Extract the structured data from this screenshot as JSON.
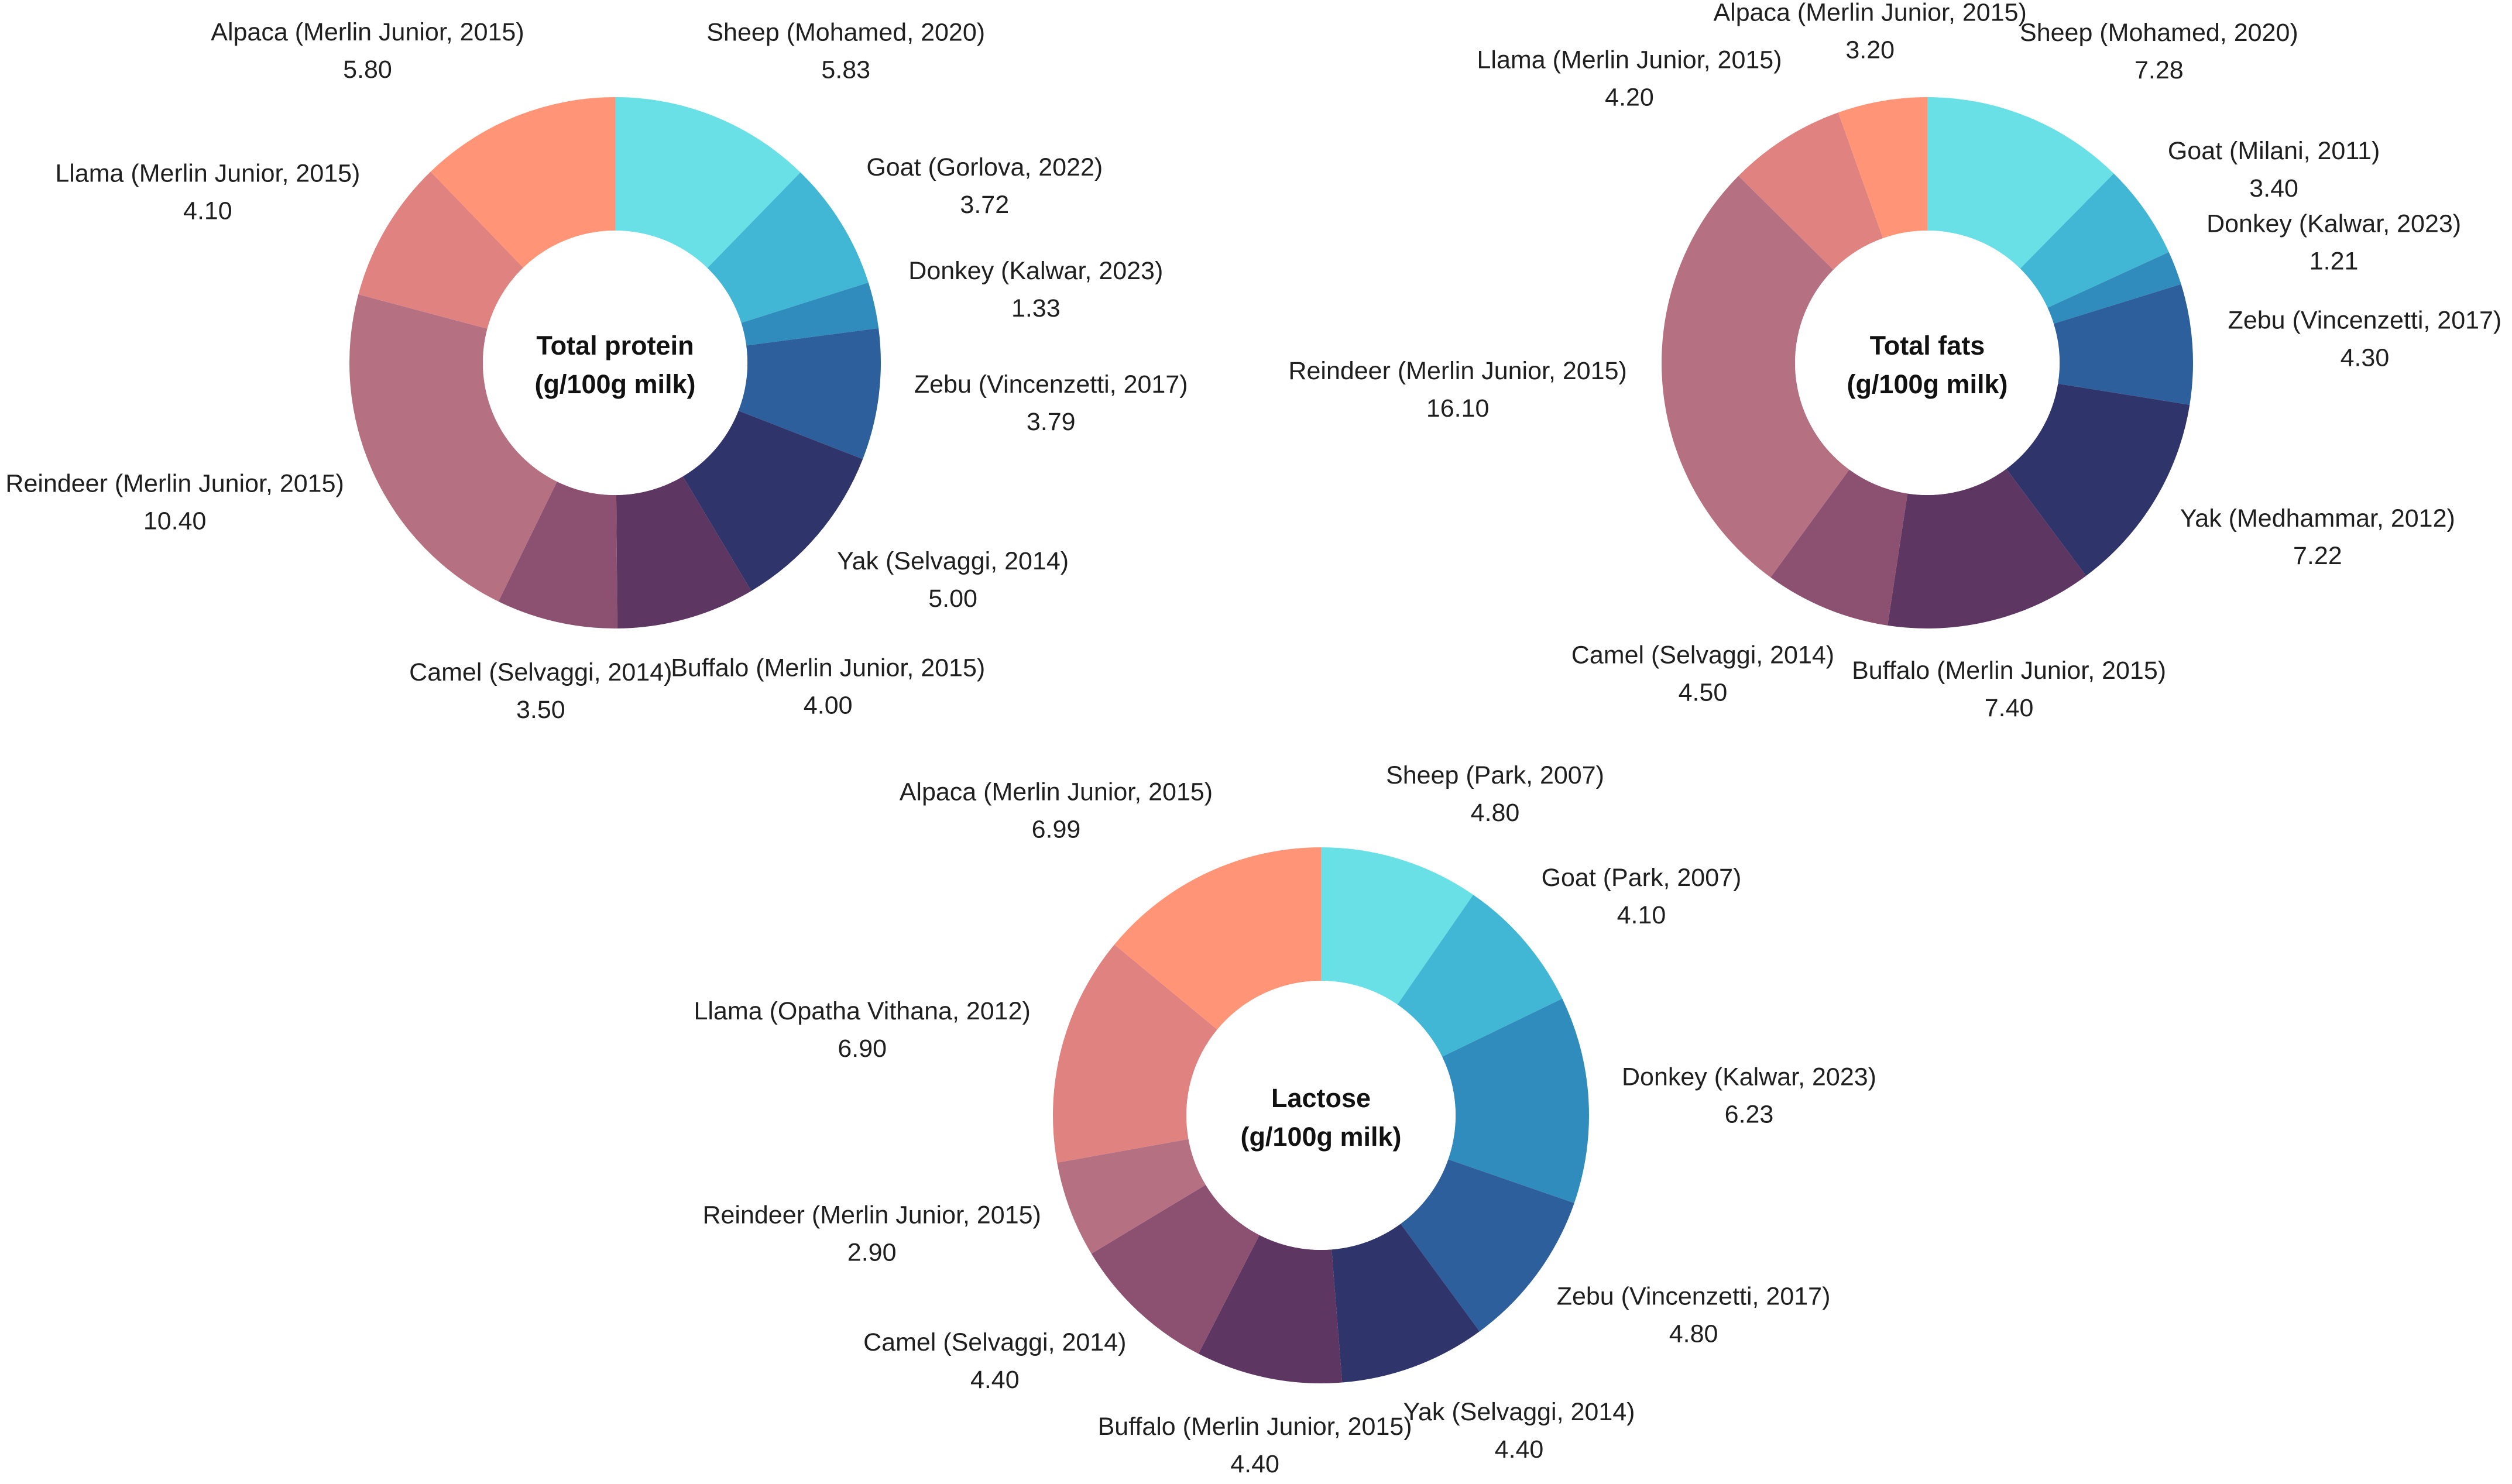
{
  "colors": {
    "Sheep": "#68e0e6",
    "Goat": "#41b7d5",
    "Donkey": "#2f8cbc",
    "Zebu": "#2d5f9c",
    "Yak": "#2f346b",
    "Buffalo": "#5d3661",
    "Camel": "#8c5171",
    "Reindeer": "#b57182",
    "Llama": "#e0827f",
    "Alpaca": "#ff9576"
  },
  "chart_data": [
    {
      "type": "pie",
      "variant": "donut",
      "center_title": "Total protein",
      "center_subtitle": "(g/100g milk)",
      "slices": [
        {
          "animal": "Sheep",
          "label": "Sheep (Mohamed, 2020)",
          "value": 5.83,
          "value_label": "5.83"
        },
        {
          "animal": "Goat",
          "label": "Goat (Gorlova, 2022)",
          "value": 3.72,
          "value_label": "3.72"
        },
        {
          "animal": "Donkey",
          "label": "Donkey (Kalwar, 2023)",
          "value": 1.33,
          "value_label": "1.33"
        },
        {
          "animal": "Zebu",
          "label": "Zebu (Vincenzetti, 2017)",
          "value": 3.79,
          "value_label": "3.79"
        },
        {
          "animal": "Yak",
          "label": "Yak (Selvaggi, 2014)",
          "value": 5.0,
          "value_label": "5.00"
        },
        {
          "animal": "Buffalo",
          "label": "Buffalo (Merlin Junior, 2015)",
          "value": 4.0,
          "value_label": "4.00"
        },
        {
          "animal": "Camel",
          "label": "Camel (Selvaggi, 2014)",
          "value": 3.5,
          "value_label": "3.50"
        },
        {
          "animal": "Reindeer",
          "label": "Reindeer (Merlin Junior, 2015)",
          "value": 10.4,
          "value_label": "10.40"
        },
        {
          "animal": "Llama",
          "label": "Llama (Merlin Junior, 2015)",
          "value": 4.1,
          "value_label": "4.10"
        },
        {
          "animal": "Alpaca",
          "label": "Alpaca (Merlin Junior, 2015)",
          "value": 5.8,
          "value_label": "5.80"
        }
      ]
    },
    {
      "type": "pie",
      "variant": "donut",
      "center_title": "Total fats",
      "center_subtitle": "(g/100g milk)",
      "slices": [
        {
          "animal": "Sheep",
          "label": "Sheep (Mohamed, 2020)",
          "value": 7.28,
          "value_label": "7.28"
        },
        {
          "animal": "Goat",
          "label": "Goat (Milani, 2011)",
          "value": 3.4,
          "value_label": "3.40"
        },
        {
          "animal": "Donkey",
          "label": "Donkey (Kalwar, 2023)",
          "value": 1.21,
          "value_label": "1.21"
        },
        {
          "animal": "Zebu",
          "label": "Zebu (Vincenzetti, 2017)",
          "value": 4.3,
          "value_label": "4.30"
        },
        {
          "animal": "Yak",
          "label": "Yak (Medhammar, 2012)",
          "value": 7.22,
          "value_label": "7.22"
        },
        {
          "animal": "Buffalo",
          "label": "Buffalo (Merlin Junior, 2015)",
          "value": 7.4,
          "value_label": "7.40"
        },
        {
          "animal": "Camel",
          "label": "Camel (Selvaggi, 2014)",
          "value": 4.5,
          "value_label": "4.50"
        },
        {
          "animal": "Reindeer",
          "label": "Reindeer (Merlin Junior, 2015)",
          "value": 16.1,
          "value_label": "16.10"
        },
        {
          "animal": "Llama",
          "label": "Llama (Merlin Junior, 2015)",
          "value": 4.2,
          "value_label": "4.20"
        },
        {
          "animal": "Alpaca",
          "label": "Alpaca (Merlin Junior, 2015)",
          "value": 3.2,
          "value_label": "3.20"
        }
      ]
    },
    {
      "type": "pie",
      "variant": "donut",
      "center_title": "Lactose",
      "center_subtitle": "(g/100g milk)",
      "slices": [
        {
          "animal": "Sheep",
          "label": "Sheep (Park, 2007)",
          "value": 4.8,
          "value_label": "4.80"
        },
        {
          "animal": "Goat",
          "label": "Goat (Park, 2007)",
          "value": 4.1,
          "value_label": "4.10"
        },
        {
          "animal": "Donkey",
          "label": "Donkey (Kalwar, 2023)",
          "value": 6.23,
          "value_label": "6.23"
        },
        {
          "animal": "Zebu",
          "label": "Zebu (Vincenzetti, 2017)",
          "value": 4.8,
          "value_label": "4.80"
        },
        {
          "animal": "Yak",
          "label": "Yak (Selvaggi, 2014)",
          "value": 4.4,
          "value_label": "4.40"
        },
        {
          "animal": "Buffalo",
          "label": "Buffalo (Merlin Junior, 2015)",
          "value": 4.4,
          "value_label": "4.40"
        },
        {
          "animal": "Camel",
          "label": "Camel (Selvaggi, 2014)",
          "value": 4.4,
          "value_label": "4.40"
        },
        {
          "animal": "Reindeer",
          "label": "Reindeer (Merlin Junior, 2015)",
          "value": 2.9,
          "value_label": "2.90"
        },
        {
          "animal": "Llama",
          "label": "Llama (Opatha Vithana, 2012)",
          "value": 6.9,
          "value_label": "6.90"
        },
        {
          "animal": "Alpaca",
          "label": "Alpaca (Merlin Junior, 2015)",
          "value": 6.99,
          "value_label": "6.99"
        }
      ]
    }
  ]
}
